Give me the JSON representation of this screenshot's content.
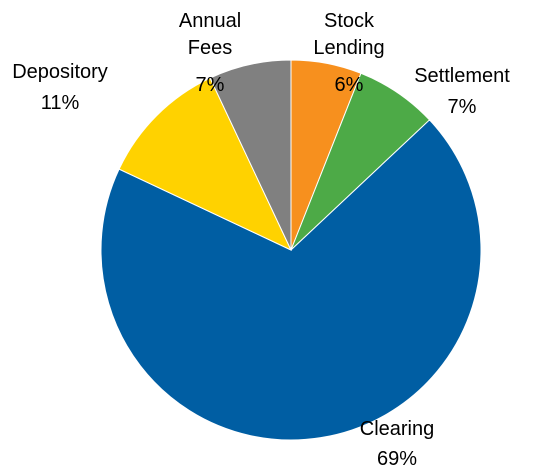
{
  "chart_data": {
    "type": "pie",
    "categories": [
      "Stock Lending",
      "Settlement",
      "Clearing",
      "Depository",
      "Annual Fees"
    ],
    "values": [
      6,
      7,
      69,
      11,
      7
    ],
    "value_labels": [
      "6%",
      "7%",
      "69%",
      "11%",
      "7%"
    ],
    "colors": [
      "#f7901e",
      "#4daa47",
      "#005ea3",
      "#ffd200",
      "#808080"
    ]
  }
}
